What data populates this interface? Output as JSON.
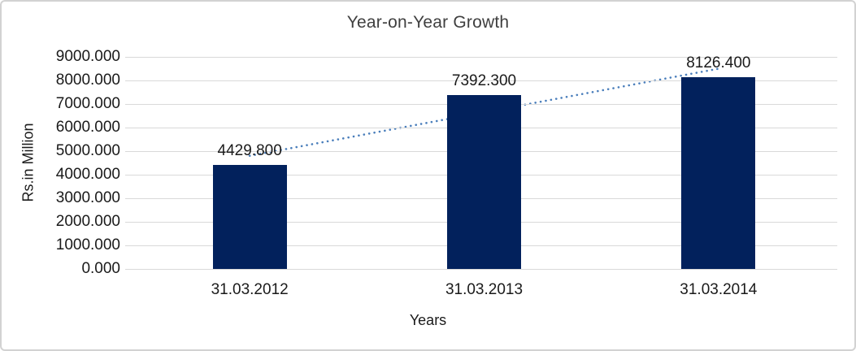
{
  "chart_data": {
    "type": "bar",
    "title": "Year-on-Year Growth",
    "xlabel": "Years",
    "ylabel": "Rs.in Million",
    "categories": [
      "31.03.2012",
      "31.03.2013",
      "31.03.2014"
    ],
    "values": [
      4429.8,
      7392.3,
      8126.4
    ],
    "data_labels": [
      "4429.800",
      "7392.300",
      "8126.400"
    ],
    "ylim": [
      0,
      9000
    ],
    "ytick_step": 1000,
    "ytick_labels": [
      "0.000",
      "1000.000",
      "2000.000",
      "3000.000",
      "4000.000",
      "5000.000",
      "6000.000",
      "7000.000",
      "8000.000",
      "9000.000"
    ],
    "grid": "horizontal-gridlines-on",
    "legend": "none",
    "trendline": {
      "type": "linear",
      "style": "dotted",
      "color": "#4a7ebb"
    },
    "colors": {
      "bar": "#02215c",
      "gridline": "#d9d9d9",
      "frame_border": "#d2d2d2",
      "text": "#1a1a1a"
    }
  }
}
